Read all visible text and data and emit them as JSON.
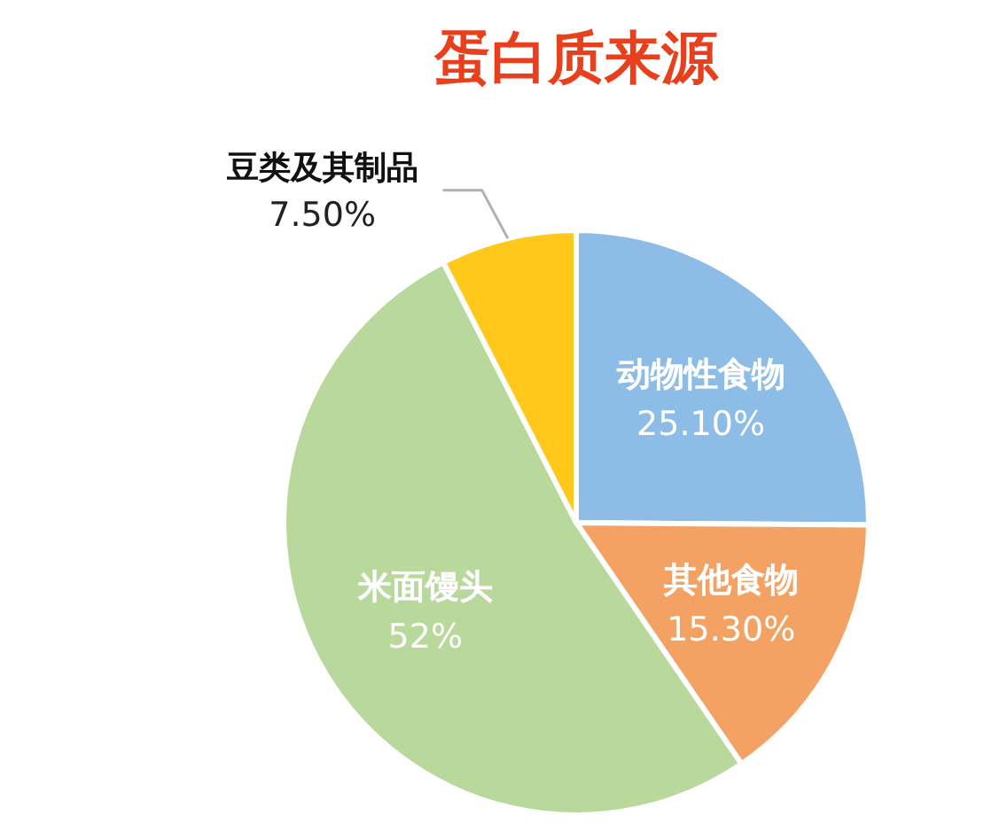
{
  "chart_data": {
    "type": "pie",
    "title": "蛋白质来源",
    "categories": [
      "动物性食物",
      "其他食物",
      "米面馒头",
      "豆类及其制品"
    ],
    "values": [
      25.1,
      15.3,
      52,
      7.5
    ],
    "value_labels": [
      "25.10%",
      "15.30%",
      "52%",
      "7.50%"
    ],
    "colors": [
      "#8dbde6",
      "#f4a263",
      "#b8d89c",
      "#ffc81a"
    ],
    "legend": false
  }
}
